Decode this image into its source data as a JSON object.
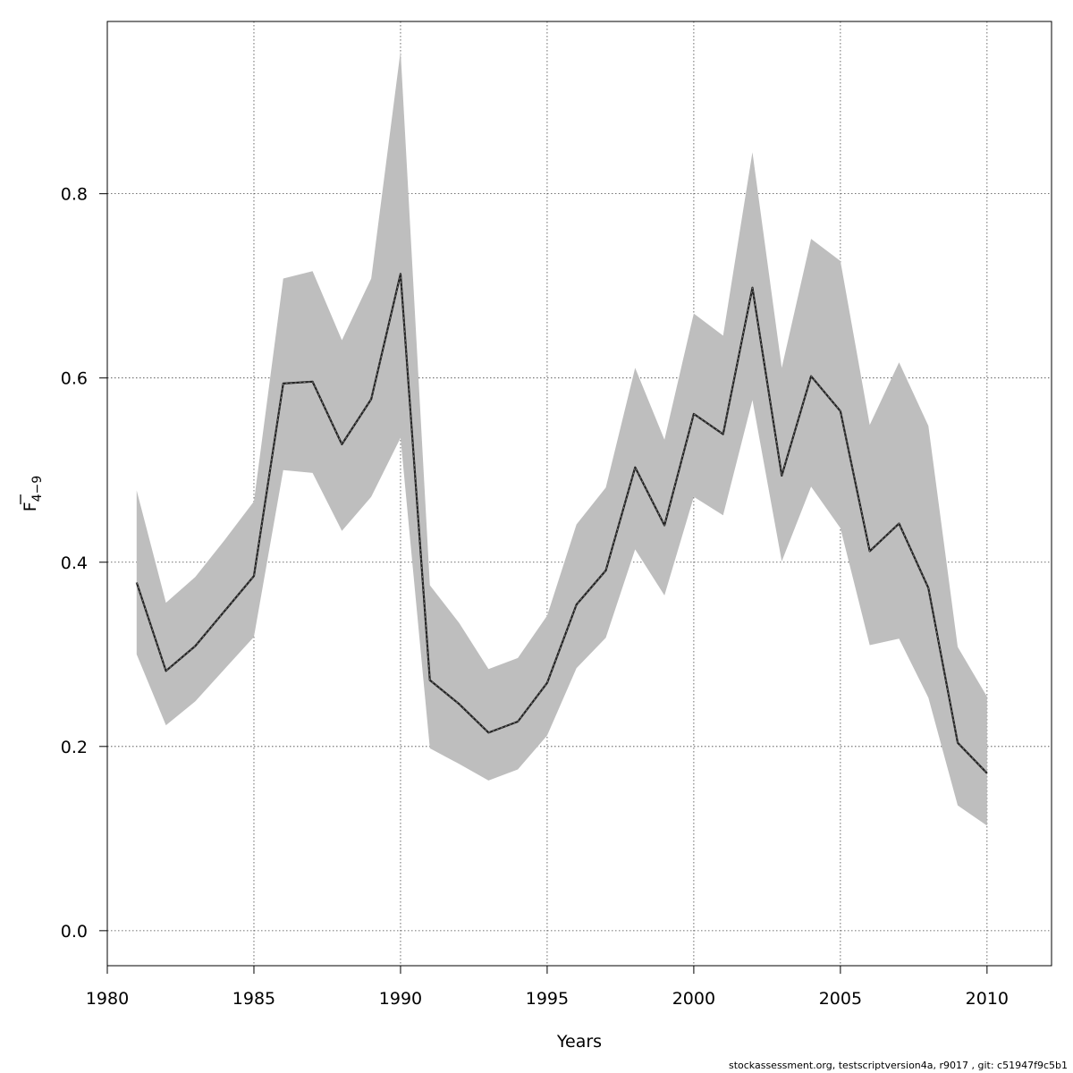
{
  "chart_data": {
    "type": "line",
    "title": "",
    "xlabel": "Years",
    "ylabel_main": "F",
    "ylabel_sub": "4−9",
    "xlim": [
      1980,
      2012.2
    ],
    "ylim": [
      -0.038,
      0.987
    ],
    "xticks": [
      1980,
      1985,
      1990,
      1995,
      2000,
      2005,
      2010
    ],
    "yticks": [
      0.0,
      0.2,
      0.4,
      0.6,
      0.8
    ],
    "ytick_labels": [
      "0.0",
      "0.2",
      "0.4",
      "0.6",
      "0.8"
    ],
    "grid": true,
    "x": [
      1981,
      1982,
      1983,
      1984,
      1985,
      1986,
      1987,
      1988,
      1989,
      1990,
      1991,
      1992,
      1993,
      1994,
      1995,
      1996,
      1997,
      1998,
      1999,
      2000,
      2001,
      2002,
      2003,
      2004,
      2005,
      2006,
      2007,
      2008,
      2009,
      2010
    ],
    "series": [
      {
        "role": "estimate",
        "color": "#222222",
        "values": [
          0.378,
          0.282,
          0.309,
          0.347,
          0.385,
          0.594,
          0.596,
          0.528,
          0.577,
          0.713,
          0.272,
          0.246,
          0.215,
          0.227,
          0.269,
          0.354,
          0.391,
          0.503,
          0.44,
          0.561,
          0.539,
          0.698,
          0.494,
          0.602,
          0.564,
          0.412,
          0.442,
          0.372,
          0.204,
          0.171
        ]
      }
    ],
    "band": {
      "color": "#bebebe",
      "lower": [
        0.3,
        0.223,
        0.249,
        0.284,
        0.319,
        0.5,
        0.497,
        0.434,
        0.471,
        0.535,
        0.198,
        0.181,
        0.163,
        0.175,
        0.212,
        0.285,
        0.318,
        0.414,
        0.364,
        0.471,
        0.451,
        0.576,
        0.401,
        0.482,
        0.437,
        0.31,
        0.317,
        0.253,
        0.136,
        0.114
      ],
      "upper": [
        0.478,
        0.356,
        0.384,
        0.424,
        0.466,
        0.708,
        0.716,
        0.641,
        0.708,
        0.955,
        0.375,
        0.334,
        0.284,
        0.296,
        0.342,
        0.441,
        0.481,
        0.611,
        0.533,
        0.67,
        0.646,
        0.845,
        0.611,
        0.751,
        0.727,
        0.549,
        0.617,
        0.548,
        0.308,
        0.254
      ]
    }
  },
  "footer": "stockassessment.org, testscriptversion4a, r9017 , git: c51947f9c5b1"
}
